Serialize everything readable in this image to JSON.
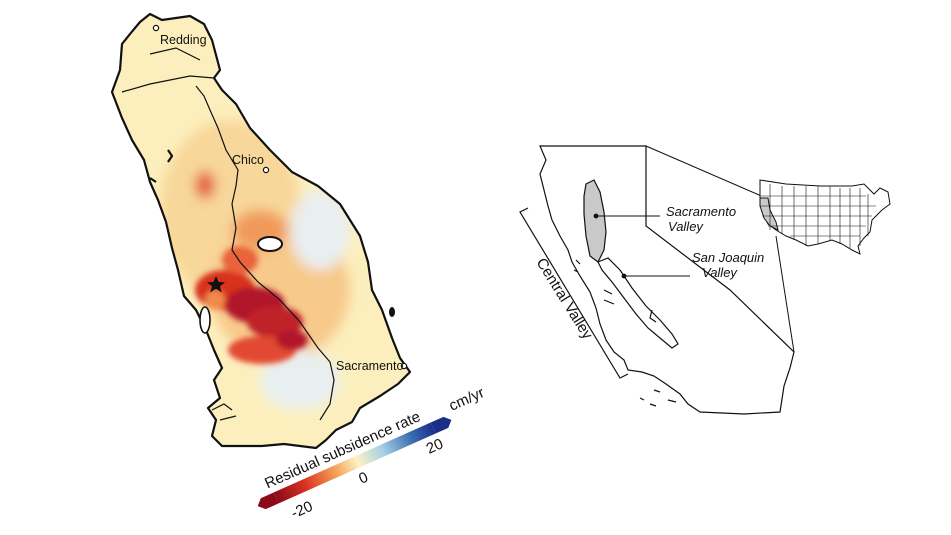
{
  "map": {
    "cities": [
      {
        "name": "Redding"
      },
      {
        "name": "Chico"
      },
      {
        "name": "Sacramento"
      }
    ],
    "colorbar": {
      "title": "Residual subsidence rate",
      "unit": "cm/yr",
      "ticks": [
        "-20",
        "0",
        "20"
      ],
      "min": -20,
      "max": 20,
      "colors": [
        "#8b0a1a",
        "#d7301f",
        "#f4a259",
        "#fdf3c2",
        "#a6cfe6",
        "#3a6fb0",
        "#1b2f8a"
      ]
    }
  },
  "inset": {
    "labels": {
      "sacramento_valley": [
        "Sacramento",
        "Valley"
      ],
      "san_joaquin_valley": [
        "San Joaquin",
        "Valley"
      ],
      "central_valley": "Central Valley"
    },
    "valley_color": "#c9c9c9"
  }
}
